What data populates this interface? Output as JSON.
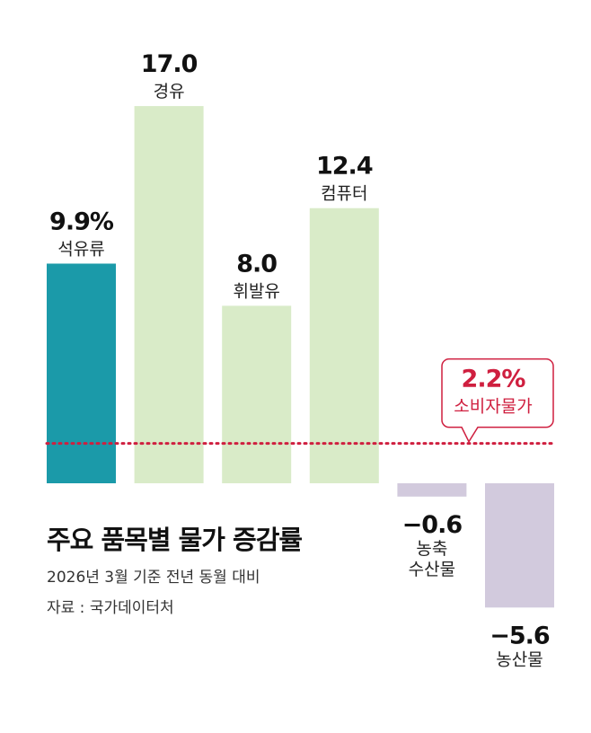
{
  "chart_data": {
    "type": "bar",
    "title": "주요 품목별 물가 증감률",
    "subtitle": "2026년 3월 기준 전년 동월 대비",
    "source": "자료 : 국가데이터처",
    "categories": [
      "석유류",
      "경유",
      "휘발유",
      "컴퓨터",
      "농축\n수산물",
      "농산물"
    ],
    "values": [
      9.9,
      17.0,
      8.0,
      12.4,
      -0.6,
      -5.6
    ],
    "value_labels": [
      "9.9%",
      "17.0",
      "8.0",
      "12.4",
      "-0.6",
      "-5.6"
    ],
    "colors": [
      "#1b9aa9",
      "#d9ebc8",
      "#d9ebc8",
      "#d9ebc8",
      "#d2cadd",
      "#d2cadd"
    ],
    "reference_line": {
      "value": 2.2,
      "label_value": "2.2%",
      "label": "소비자물가",
      "color": "#cf1f3f"
    },
    "ylim": [
      -5.6,
      17.0
    ],
    "xlabel": "",
    "ylabel": "",
    "grid": false
  }
}
